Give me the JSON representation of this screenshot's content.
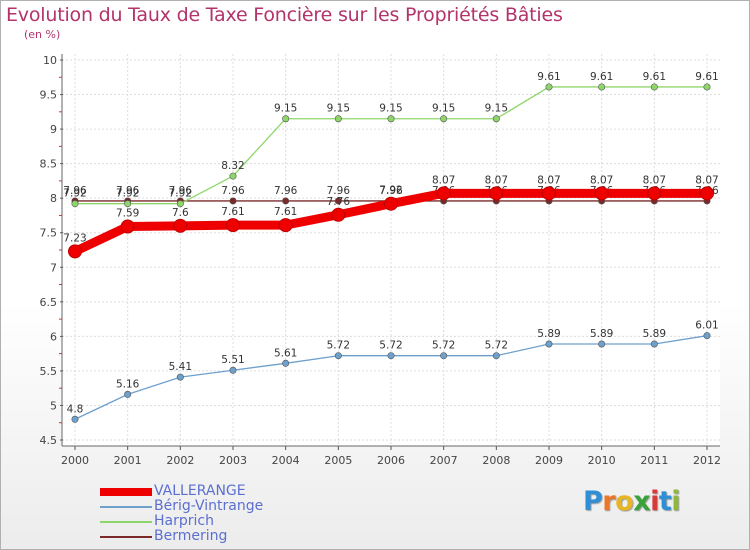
{
  "title": "Evolution du Taux de Taxe Foncière sur les Propriétés Bâties",
  "unit": "(en %)",
  "logo": {
    "letters": [
      "P",
      "r",
      "o",
      "x",
      "i",
      "t",
      "i"
    ],
    "colors": [
      "#2e8fd6",
      "#e8772a",
      "#e8b625",
      "#3aa23a",
      "#d63a3a",
      "#2e8fd6",
      "#8db838"
    ]
  },
  "chart_data": {
    "type": "line",
    "title": "Evolution du Taux de Taxe Foncière sur les Propriétés Bâties",
    "ylabel": "(en %)",
    "xlabel": "",
    "ylim": [
      4.5,
      10
    ],
    "yticks": [
      "4.5",
      "5",
      "5.5",
      "6",
      "6.5",
      "7",
      "7.5",
      "8",
      "8.5",
      "9",
      "9.5",
      "10"
    ],
    "x": [
      "2000",
      "2001",
      "2002",
      "2003",
      "2004",
      "2005",
      "2006",
      "2007",
      "2008",
      "2009",
      "2010",
      "2011",
      "2012"
    ],
    "series": [
      {
        "name": "Bermering",
        "color": "#7a2a2a",
        "values": [
          7.96,
          7.96,
          7.96,
          7.96,
          7.96,
          7.96,
          7.96,
          7.96,
          7.96,
          7.96,
          7.96,
          7.96,
          7.96
        ],
        "labels": [
          "7.96",
          "7.96",
          "7.96",
          "7.96",
          "7.96",
          "7.96",
          "7.96",
          "7.96",
          "7.96",
          "7.96",
          "7.96",
          "7.96",
          "7.96"
        ]
      },
      {
        "name": "Harprich",
        "color": "#8fd66a",
        "values": [
          7.92,
          7.92,
          7.92,
          8.32,
          9.15,
          9.15,
          9.15,
          9.15,
          9.15,
          9.61,
          9.61,
          9.61,
          9.61
        ],
        "labels": [
          "7.92",
          "7.92",
          "7.92",
          "8.32",
          "9.15",
          "9.15",
          "9.15",
          "9.15",
          "9.15",
          "9.61",
          "9.61",
          "9.61",
          "9.61"
        ]
      },
      {
        "name": "Bérig-Vintrange",
        "color": "#6ea0cc",
        "values": [
          4.8,
          5.16,
          5.41,
          5.51,
          5.61,
          5.72,
          5.72,
          5.72,
          5.72,
          5.89,
          5.89,
          5.89,
          6.01
        ],
        "labels": [
          "4.8",
          "5.16",
          "5.41",
          "5.51",
          "5.61",
          "5.72",
          "5.72",
          "5.72",
          "5.72",
          "5.89",
          "5.89",
          "5.89",
          "6.01"
        ]
      },
      {
        "name": "VALLERANGE",
        "color": "#ee0000",
        "values": [
          7.23,
          7.59,
          7.6,
          7.61,
          7.61,
          7.76,
          7.92,
          8.07,
          8.07,
          8.07,
          8.07,
          8.07,
          8.07
        ],
        "labels": [
          "7.23",
          "7.59",
          "7.6",
          "7.61",
          "7.61",
          "7.76",
          "7.92",
          "8.07",
          "8.07",
          "8.07",
          "8.07",
          "8.07",
          "8.07"
        ]
      }
    ],
    "legend": [
      "VALLERANGE",
      "Bérig-Vintrange",
      "Harprich",
      "Bermering"
    ],
    "legend_position": "bottom-left",
    "grid": true
  }
}
